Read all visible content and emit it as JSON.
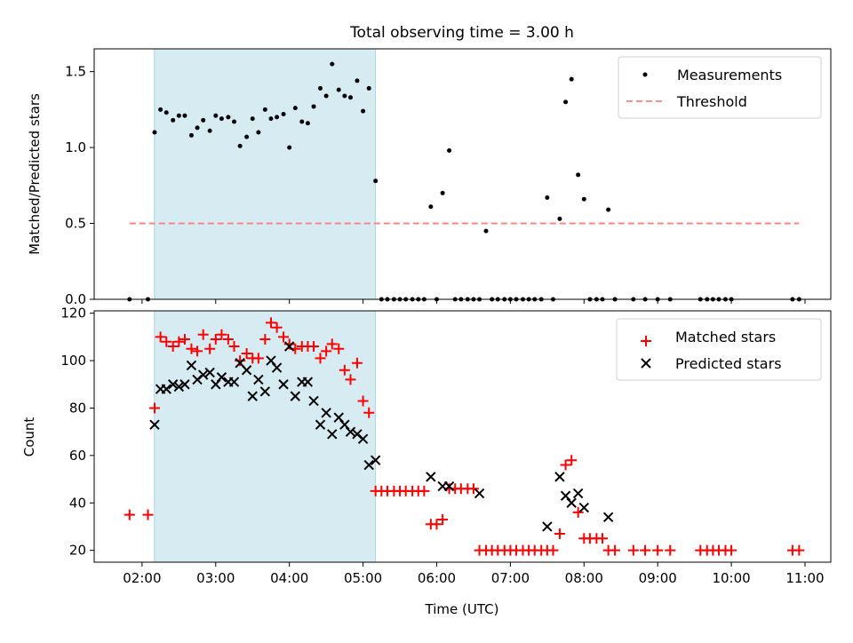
{
  "figure": {
    "title": "Total observing time = 3.00 h",
    "colors": {
      "highlight": "#add8e6",
      "threshold": "#ff7f7f",
      "matched": "#ff0000",
      "predicted": "#000000",
      "measurement": "#000000"
    }
  },
  "chart_data": [
    {
      "type": "scatter",
      "name": "ratio-panel",
      "ylabel": "Matched/Predicted stars",
      "xlabel": "",
      "xlim": [
        1.35,
        11.35
      ],
      "ylim": [
        0,
        1.65
      ],
      "yticks": [
        0,
        0.5,
        1.0,
        1.5
      ],
      "ytick_labels": [
        "0.0",
        "0.5",
        "1.0",
        "1.5"
      ],
      "highlight_span": [
        2.167,
        5.167
      ],
      "legend": {
        "position": "top-right",
        "entries": [
          "Measurements",
          "Threshold"
        ]
      },
      "threshold": {
        "value": 0.5,
        "x": [
          1.83,
          10.92
        ]
      },
      "measurements": {
        "x": [
          1.83,
          2.08,
          2.17,
          2.25,
          2.33,
          2.42,
          2.5,
          2.58,
          2.67,
          2.75,
          2.83,
          2.92,
          3.0,
          3.08,
          3.17,
          3.25,
          3.33,
          3.42,
          3.5,
          3.58,
          3.67,
          3.75,
          3.83,
          3.92,
          4.0,
          4.08,
          4.17,
          4.25,
          4.33,
          4.42,
          4.5,
          4.58,
          4.67,
          4.75,
          4.83,
          4.92,
          5.0,
          5.08,
          5.17,
          5.25,
          5.33,
          5.42,
          5.5,
          5.58,
          5.67,
          5.75,
          5.83,
          5.92,
          6.0,
          6.08,
          6.17,
          6.25,
          6.33,
          6.42,
          6.5,
          6.58,
          6.67,
          6.75,
          6.83,
          6.92,
          7.0,
          7.08,
          7.17,
          7.25,
          7.33,
          7.42,
          7.5,
          7.58,
          7.67,
          7.75,
          7.83,
          7.92,
          8.0,
          8.08,
          8.17,
          8.25,
          8.33,
          8.42,
          8.67,
          8.83,
          9.0,
          9.17,
          9.58,
          9.67,
          9.75,
          9.83,
          9.92,
          10.0,
          10.83,
          10.92
        ],
        "y": [
          0,
          0,
          1.1,
          1.25,
          1.23,
          1.18,
          1.21,
          1.21,
          1.08,
          1.13,
          1.18,
          1.11,
          1.21,
          1.19,
          1.2,
          1.17,
          1.01,
          1.07,
          1.19,
          1.1,
          1.25,
          1.19,
          1.2,
          1.22,
          1.0,
          1.26,
          1.17,
          1.16,
          1.27,
          1.39,
          1.34,
          1.55,
          1.38,
          1.34,
          1.33,
          1.44,
          1.24,
          1.39,
          0.78,
          0,
          0,
          0,
          0,
          0,
          0,
          0,
          0,
          0.61,
          0,
          0.7,
          0.98,
          0,
          0,
          0,
          0,
          0,
          0.45,
          0,
          0,
          0,
          0,
          0,
          0,
          0,
          0,
          0,
          0.67,
          0,
          0.53,
          1.3,
          1.45,
          0.82,
          0.66,
          0,
          0,
          0,
          0.59,
          0,
          0,
          0,
          0,
          0,
          0,
          0,
          0,
          0,
          0,
          0,
          0,
          0
        ]
      }
    },
    {
      "type": "scatter",
      "name": "count-panel",
      "ylabel": "Count",
      "xlabel": "Time (UTC)",
      "xlim": [
        1.35,
        11.35
      ],
      "ylim": [
        15,
        121
      ],
      "yticks": [
        20,
        40,
        60,
        80,
        100,
        120
      ],
      "ytick_labels": [
        "20",
        "40",
        "60",
        "80",
        "100",
        "120"
      ],
      "xticks": [
        2,
        3,
        4,
        5,
        6,
        7,
        8,
        9,
        10,
        11
      ],
      "xtick_labels": [
        "02:00",
        "03:00",
        "04:00",
        "05:00",
        "06:00",
        "07:00",
        "08:00",
        "09:00",
        "10:00",
        "11:00"
      ],
      "highlight_span": [
        2.167,
        5.167
      ],
      "legend": {
        "position": "top-right",
        "entries": [
          "Matched stars",
          "Predicted stars"
        ]
      },
      "series": [
        {
          "name": "Matched stars",
          "x": [
            1.83,
            2.08,
            2.17,
            2.25,
            2.33,
            2.42,
            2.5,
            2.58,
            2.67,
            2.75,
            2.83,
            2.92,
            3.0,
            3.08,
            3.17,
            3.25,
            3.33,
            3.42,
            3.5,
            3.58,
            3.67,
            3.75,
            3.83,
            3.92,
            4.0,
            4.08,
            4.17,
            4.25,
            4.33,
            4.42,
            4.5,
            4.58,
            4.67,
            4.75,
            4.83,
            4.92,
            5.0,
            5.08,
            5.17,
            5.25,
            5.33,
            5.42,
            5.5,
            5.58,
            5.67,
            5.75,
            5.83,
            5.92,
            6.0,
            6.08,
            6.17,
            6.25,
            6.33,
            6.42,
            6.5,
            6.58,
            6.67,
            6.75,
            6.83,
            6.92,
            7.0,
            7.08,
            7.17,
            7.25,
            7.33,
            7.42,
            7.5,
            7.58,
            7.67,
            7.75,
            7.83,
            7.92,
            8.0,
            8.08,
            8.17,
            8.25,
            8.33,
            8.42,
            8.67,
            8.83,
            9.0,
            9.17,
            9.58,
            9.67,
            9.75,
            9.83,
            9.92,
            10.0,
            10.83,
            10.92
          ],
          "y": [
            35,
            35,
            80,
            110,
            108,
            106,
            108,
            109,
            105,
            104,
            111,
            105,
            109,
            111,
            109,
            106,
            100,
            103,
            101,
            101,
            109,
            116,
            114,
            110,
            107,
            105,
            106,
            106,
            106,
            101,
            104,
            107,
            105,
            96,
            92,
            99,
            83,
            78,
            45,
            45,
            45,
            45,
            45,
            45,
            45,
            45,
            45,
            31,
            31,
            33,
            46,
            46,
            46,
            46,
            46,
            20,
            20,
            20,
            20,
            20,
            20,
            20,
            20,
            20,
            20,
            20,
            20,
            20,
            27,
            56,
            58,
            36,
            25,
            25,
            25,
            25,
            20,
            20,
            20,
            20,
            20,
            20,
            20,
            20,
            20,
            20,
            20,
            20,
            20,
            20
          ]
        },
        {
          "name": "Predicted stars",
          "x": [
            2.17,
            2.25,
            2.33,
            2.42,
            2.5,
            2.58,
            2.67,
            2.75,
            2.83,
            2.92,
            3.0,
            3.08,
            3.17,
            3.25,
            3.33,
            3.42,
            3.5,
            3.58,
            3.67,
            3.75,
            3.83,
            3.92,
            4.0,
            4.08,
            4.17,
            4.25,
            4.33,
            4.42,
            4.5,
            4.58,
            4.67,
            4.75,
            4.83,
            4.92,
            5.0,
            5.08,
            5.17,
            5.92,
            6.08,
            6.17,
            6.58,
            7.5,
            7.67,
            7.75,
            7.83,
            7.92,
            8.0,
            8.33
          ],
          "y": [
            73,
            88,
            88,
            90,
            89,
            90,
            98,
            92,
            94,
            95,
            90,
            93,
            91,
            91,
            99,
            96,
            85,
            92,
            87,
            100,
            97,
            90,
            106,
            85,
            91,
            91,
            83,
            73,
            78,
            69,
            76,
            73,
            70,
            69,
            67,
            56,
            58,
            51,
            47,
            47,
            44,
            30,
            51,
            43,
            40,
            44,
            38,
            34
          ]
        }
      ]
    }
  ]
}
